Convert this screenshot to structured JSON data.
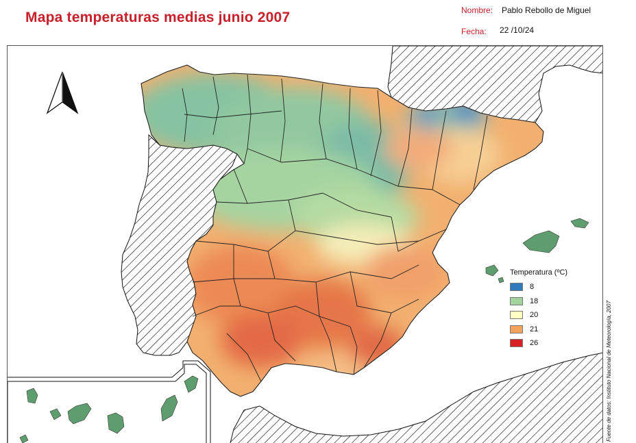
{
  "header": {
    "title": "Mapa temperaturas medias junio 2007",
    "author_label": "Nombre:",
    "author_value": "Pablo Rebollo de Miguel",
    "date_label": "Fecha:",
    "date_value": "22 /10/24"
  },
  "legend": {
    "title": "Temperatura (ºC)",
    "items": [
      {
        "label": "8",
        "color": "#2f7bbd"
      },
      {
        "label": "18",
        "color": "#a3d39c"
      },
      {
        "label": "20",
        "color": "#ffffc4"
      },
      {
        "label": "21",
        "color": "#f5a35c"
      },
      {
        "label": "26",
        "color": "#d62024"
      }
    ]
  },
  "source": "Fuente de datos: Instituto Nacional de Meteorología, 2007",
  "colors": {
    "title": "#c8202a",
    "land_green": "#5e9e6e",
    "border": "#222222"
  },
  "icons": {
    "north_arrow": "north-arrow-icon"
  }
}
